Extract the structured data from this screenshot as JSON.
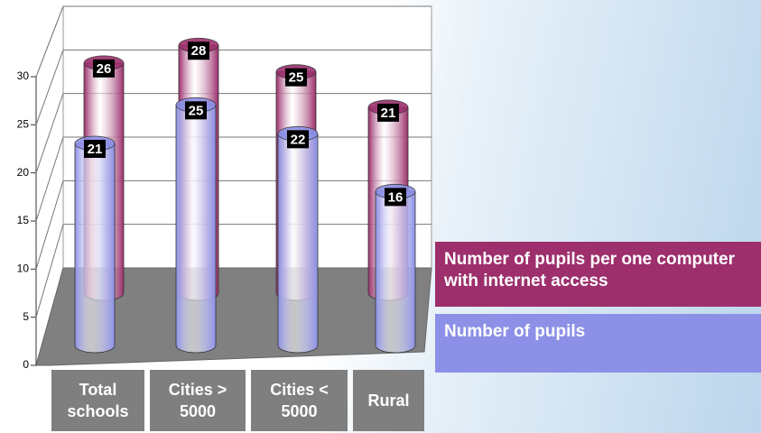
{
  "chart_data": {
    "type": "bar3d",
    "categories": [
      "Total schools",
      "Cities > 5000",
      "Cities < 5000",
      "Rural"
    ],
    "series": [
      {
        "name": "Number of pupils per one computer with internet access",
        "color": "#9c2f6c",
        "values": [
          26,
          28,
          25,
          21
        ]
      },
      {
        "name": "Number of pupils",
        "color": "#8c90e6",
        "values": [
          21,
          25,
          22,
          16
        ]
      }
    ],
    "ylim": [
      0,
      30
    ],
    "yticks": [
      0,
      5,
      10,
      15,
      20,
      25,
      30
    ],
    "grid": true
  }
}
